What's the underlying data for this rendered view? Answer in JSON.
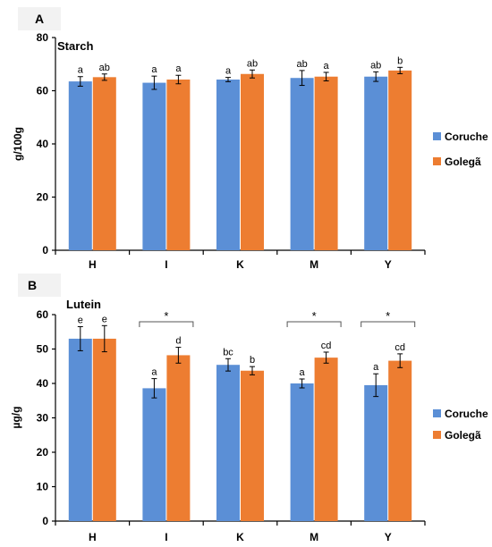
{
  "colors": {
    "Coruche": "#5b8fd6",
    "Golegã": "#ed7d31",
    "panel_bg": "#f2f2f2"
  },
  "chart_data": [
    {
      "panel": "A",
      "type": "bar",
      "title": "Starch",
      "xlabel": "",
      "ylabel": "g/100g",
      "ylim": [
        0,
        80
      ],
      "yticks": [
        0,
        20,
        40,
        60,
        80
      ],
      "grid": false,
      "legend": "right",
      "categories": [
        "H",
        "I",
        "K",
        "M",
        "Y"
      ],
      "series": [
        {
          "name": "Coruche",
          "values": [
            63.5,
            63.0,
            64.2,
            64.8,
            65.3
          ],
          "errors": [
            1.8,
            2.5,
            0.8,
            2.8,
            1.8
          ],
          "labels": [
            "a",
            "a",
            "a",
            "ab",
            "ab"
          ]
        },
        {
          "name": "Golegã",
          "values": [
            65.1,
            64.2,
            66.3,
            65.3,
            67.6
          ],
          "errors": [
            1.2,
            1.6,
            1.5,
            1.6,
            1.2
          ],
          "labels": [
            "ab",
            "a",
            "ab",
            "a",
            "b"
          ]
        }
      ],
      "significance": []
    },
    {
      "panel": "B",
      "type": "bar",
      "title": "Lutein",
      "xlabel": "",
      "ylabel": "µg/g",
      "ylim": [
        0,
        60
      ],
      "yticks": [
        0,
        10,
        20,
        30,
        40,
        50,
        60
      ],
      "grid": false,
      "legend": "right",
      "categories": [
        "H",
        "I",
        "K",
        "M",
        "Y"
      ],
      "series": [
        {
          "name": "Coruche",
          "values": [
            53.0,
            38.6,
            45.4,
            40.0,
            39.5
          ],
          "errors": [
            3.5,
            2.8,
            1.8,
            1.3,
            3.3
          ],
          "labels": [
            "e",
            "a",
            "bc",
            "a",
            "a"
          ]
        },
        {
          "name": "Golegã",
          "values": [
            53.0,
            48.2,
            43.7,
            47.5,
            46.6
          ],
          "errors": [
            3.8,
            2.3,
            1.2,
            1.6,
            2.0
          ],
          "labels": [
            "e",
            "d",
            "b",
            "cd",
            "cd"
          ]
        }
      ],
      "significance": [
        {
          "category": "I",
          "mark": "*"
        },
        {
          "category": "M",
          "mark": "*"
        },
        {
          "category": "Y",
          "mark": "*"
        }
      ]
    }
  ]
}
